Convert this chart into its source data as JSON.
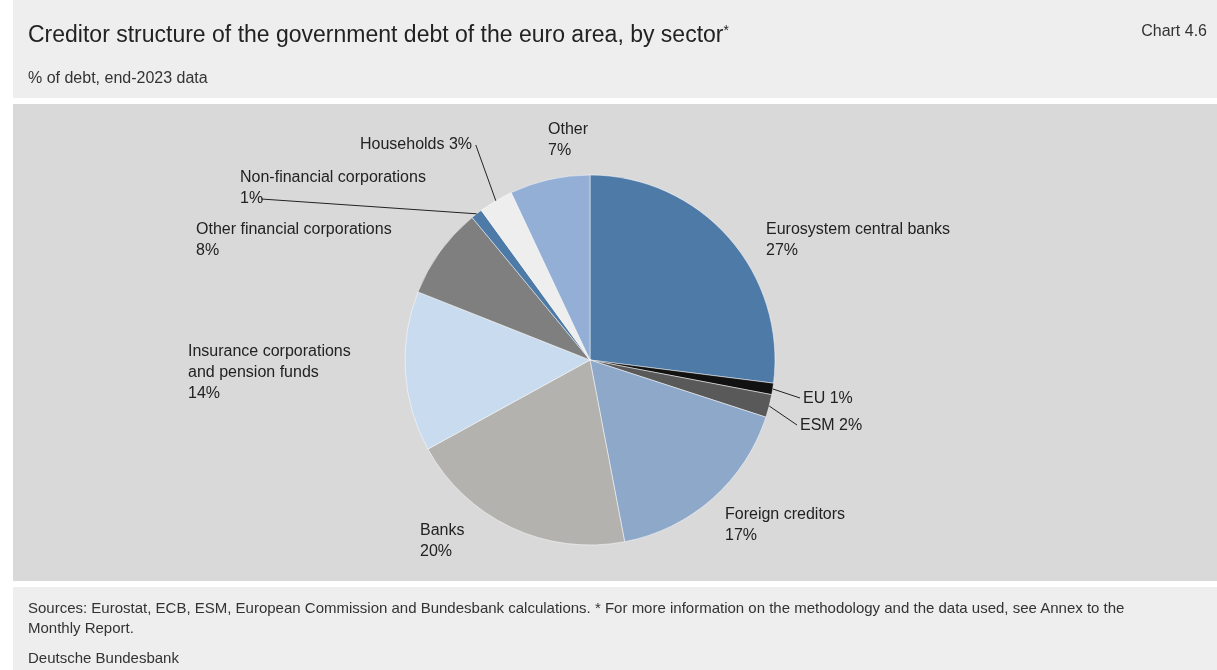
{
  "chart_data": {
    "type": "pie",
    "title": "Creditor structure of the government debt of the euro area, by sector$^{*}$",
    "subtitle": "% of debt, end-2023 data",
    "categories": [
      "Eurosystem central banks",
      "EU",
      "ESM",
      "Foreign creditors",
      "Banks",
      "Insurance corporations and pension funds",
      "Other financial corporations",
      "Non-financial corporations",
      "Households",
      "Other"
    ],
    "values": [
      27,
      1,
      2,
      17,
      20,
      14,
      8,
      1,
      3,
      7
    ],
    "value_labels": [
      "27%",
      "1%",
      "2%",
      "17%",
      "20%",
      "14%",
      "8%",
      "1%",
      "3%",
      "7%"
    ],
    "colors": [
      "#4d7aa7",
      "#111111",
      "#595959",
      "#8ea8c9",
      "#b4b2af",
      "#c9dbee",
      "#7f7f7f",
      "#4d7aa7",
      "#eeeeee",
      "#93afd6"
    ],
    "annotations": [
      "Chart 4.6",
      "Sources: Eurostat, ECB, ESM, European Commission and Bundesbank calculations. * For more information on the methodology and the data used, see Annex to the Monthly Report.",
      "Deutsche Bundesbank"
    ]
  }
}
